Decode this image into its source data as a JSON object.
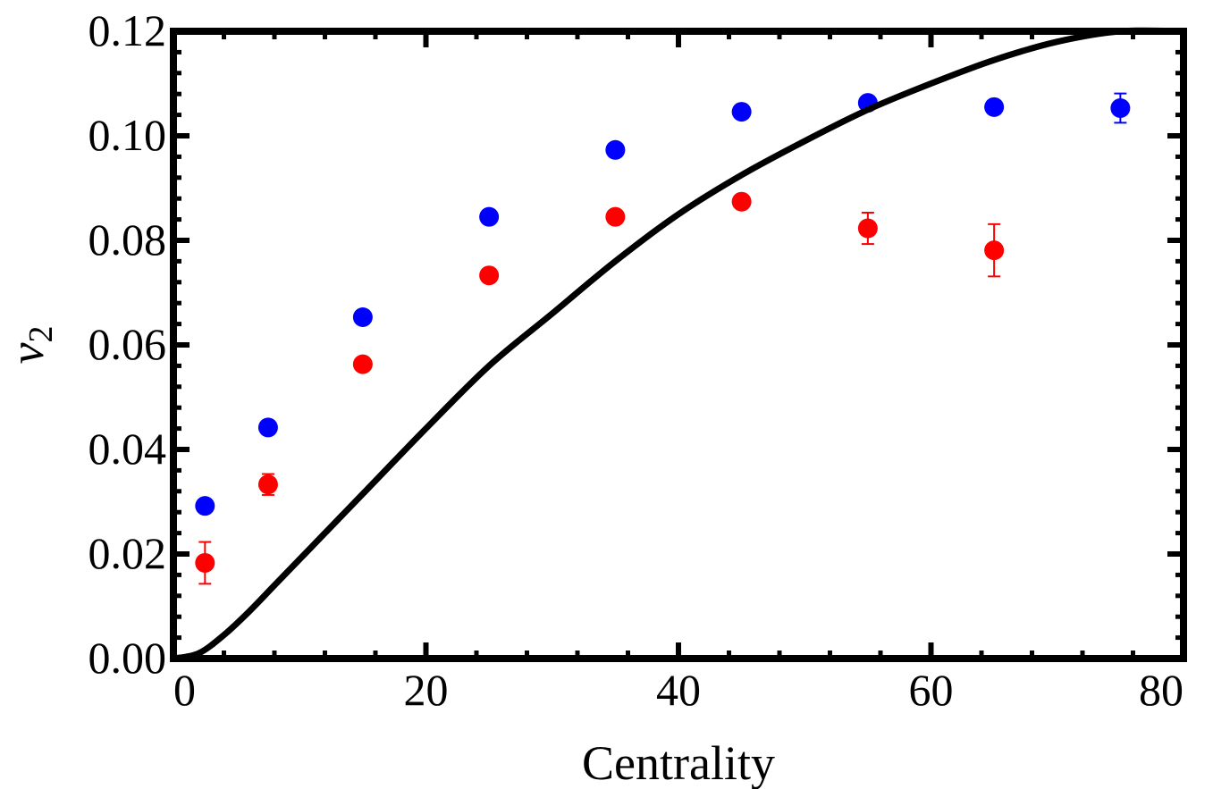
{
  "chart_data": {
    "type": "scatter",
    "title": "",
    "xlabel": "Centrality",
    "ylabel": {
      "main": "v",
      "sub": "2"
    },
    "xlim": [
      0,
      80
    ],
    "ylim": [
      0,
      0.12
    ],
    "xticks": [
      "0",
      "20",
      "40",
      "60",
      "80"
    ],
    "yticks": [
      "0.00",
      "0.02",
      "0.04",
      "0.06",
      "0.08",
      "0.10",
      "0.12"
    ],
    "grid": false,
    "series": [
      {
        "type": "scatter",
        "color": "#0000ff",
        "points": [
          {
            "x": 2.5,
            "y": 0.0292,
            "err": 0
          },
          {
            "x": 7.5,
            "y": 0.0442,
            "err": 0
          },
          {
            "x": 15,
            "y": 0.0653,
            "err": 0
          },
          {
            "x": 25,
            "y": 0.0845,
            "err": 0
          },
          {
            "x": 35,
            "y": 0.0973,
            "err": 0
          },
          {
            "x": 45,
            "y": 0.1046,
            "err": 0
          },
          {
            "x": 55,
            "y": 0.1063,
            "err": 0.0008
          },
          {
            "x": 65,
            "y": 0.1055,
            "err": 0
          },
          {
            "x": 75,
            "y": 0.1053,
            "err": 0.0028
          }
        ]
      },
      {
        "type": "scatter",
        "color": "#ff0000",
        "points": [
          {
            "x": 2.5,
            "y": 0.0183,
            "err": 0.004
          },
          {
            "x": 7.5,
            "y": 0.0333,
            "err": 0.002
          },
          {
            "x": 15,
            "y": 0.0563,
            "err": 0
          },
          {
            "x": 25,
            "y": 0.0733,
            "err": 0
          },
          {
            "x": 35,
            "y": 0.0845,
            "err": 0
          },
          {
            "x": 45,
            "y": 0.0874,
            "err": 0
          },
          {
            "x": 55,
            "y": 0.0823,
            "err": 0.003
          },
          {
            "x": 65,
            "y": 0.0781,
            "err": 0.005
          }
        ]
      },
      {
        "type": "line",
        "color": "#000000",
        "x": [
          0,
          2,
          4,
          6,
          8,
          10,
          12,
          15,
          20,
          25,
          30,
          35,
          40,
          45,
          50,
          55,
          60,
          65,
          70,
          75,
          80
        ],
        "y": [
          0,
          0.001,
          0.0045,
          0.009,
          0.014,
          0.019,
          0.024,
          0.0315,
          0.044,
          0.056,
          0.066,
          0.076,
          0.085,
          0.0925,
          0.099,
          0.105,
          0.11,
          0.1145,
          0.118,
          0.12,
          0.12
        ]
      }
    ]
  }
}
